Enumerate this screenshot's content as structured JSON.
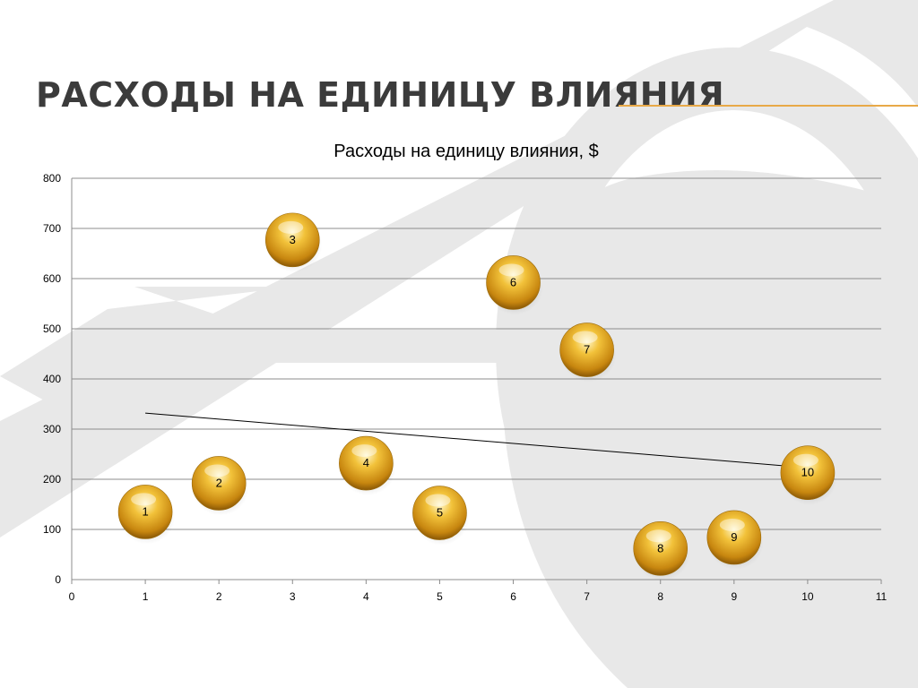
{
  "slide": {
    "title": "Расходы на единицу влияния",
    "accent_color": "#e8a948",
    "background_art": "arrow-target-watermark"
  },
  "chart_data": {
    "type": "scatter",
    "title": "Расходы на единицу влияния, $",
    "xlim": [
      0,
      11
    ],
    "ylim": [
      0,
      800
    ],
    "x_ticks": [
      0,
      1,
      2,
      3,
      4,
      5,
      6,
      7,
      8,
      9,
      10,
      11
    ],
    "y_ticks": [
      0,
      100,
      200,
      300,
      400,
      500,
      600,
      700,
      800
    ],
    "grid": "horizontal",
    "legend": "none",
    "marker_color": "#e0a020",
    "points": [
      {
        "x": 1,
        "y": 135,
        "label": "1"
      },
      {
        "x": 2,
        "y": 192,
        "label": "2"
      },
      {
        "x": 3,
        "y": 677,
        "label": "3"
      },
      {
        "x": 4,
        "y": 232,
        "label": "4"
      },
      {
        "x": 5,
        "y": 133,
        "label": "5"
      },
      {
        "x": 6,
        "y": 592,
        "label": "6"
      },
      {
        "x": 7,
        "y": 458,
        "label": "7"
      },
      {
        "x": 8,
        "y": 62,
        "label": "8"
      },
      {
        "x": 9,
        "y": 84,
        "label": "9"
      },
      {
        "x": 10,
        "y": 213,
        "label": "10"
      }
    ],
    "trendline": {
      "type": "linear",
      "x": [
        1,
        10
      ],
      "y": [
        332,
        223
      ]
    }
  }
}
